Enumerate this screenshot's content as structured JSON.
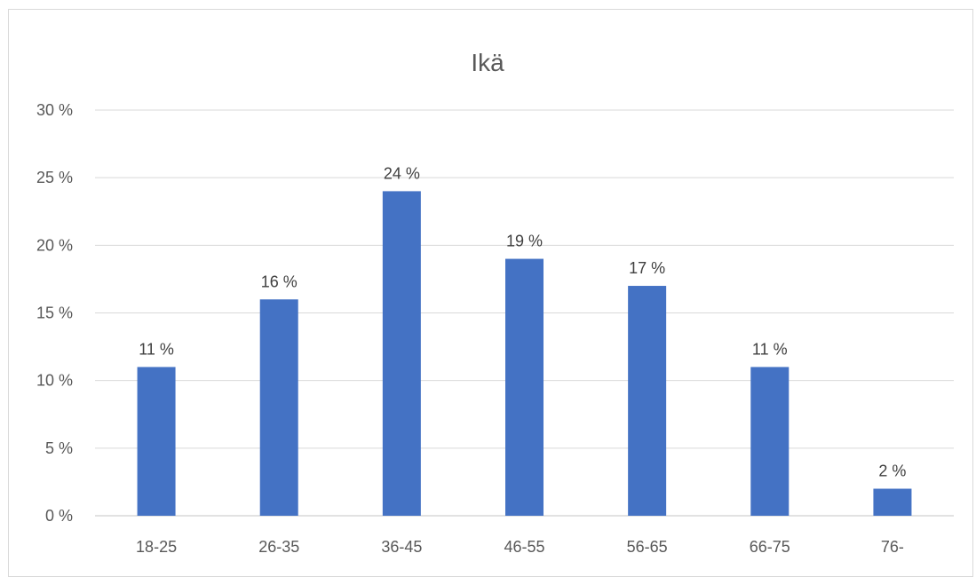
{
  "chart_data": {
    "type": "bar",
    "title": "Ikä",
    "categories": [
      "18-25",
      "26-35",
      "36-45",
      "46-55",
      "56-65",
      "66-75",
      "76-"
    ],
    "values": [
      11,
      16,
      24,
      19,
      17,
      11,
      2
    ],
    "data_labels": [
      "11 %",
      "16 %",
      "24 %",
      "19 %",
      "17 %",
      "11 %",
      "2 %"
    ],
    "ylim": [
      0,
      30
    ],
    "yticks": [
      0,
      5,
      10,
      15,
      20,
      25,
      30
    ],
    "ytick_labels": [
      "0 %",
      "5 %",
      "10 %",
      "15 %",
      "20 %",
      "25 %",
      "30 %"
    ],
    "xlabel": "",
    "ylabel": "",
    "grid": true,
    "legend": "none",
    "bar_color": "#4472c4"
  }
}
